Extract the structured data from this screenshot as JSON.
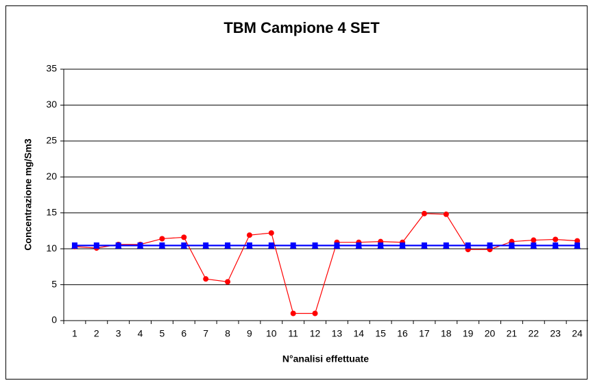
{
  "chart_data": {
    "type": "line",
    "title": "TBM Campione 4 SET",
    "x_label": "N°analisi effettuate",
    "y_label": "Concentrazione mg/Sm3",
    "categories": [
      "1",
      "2",
      "3",
      "4",
      "5",
      "6",
      "7",
      "8",
      "9",
      "10",
      "11",
      "12",
      "13",
      "14",
      "15",
      "16",
      "17",
      "18",
      "19",
      "20",
      "21",
      "22",
      "23",
      "24"
    ],
    "series": [
      {
        "color": "#ff0000",
        "marker": "circle",
        "values": [
          10.3,
          10.1,
          10.6,
          10.6,
          11.4,
          11.6,
          5.8,
          5.4,
          11.9,
          12.2,
          1.0,
          1.0,
          10.9,
          10.9,
          11.0,
          10.9,
          14.9,
          14.8,
          9.9,
          9.9,
          11.0,
          11.2,
          11.3,
          11.1
        ]
      },
      {
        "color": "#0000ff",
        "marker": "square",
        "values": [
          10.5,
          10.5,
          10.5,
          10.5,
          10.5,
          10.5,
          10.5,
          10.5,
          10.5,
          10.5,
          10.5,
          10.5,
          10.5,
          10.5,
          10.5,
          10.5,
          10.5,
          10.5,
          10.5,
          10.5,
          10.5,
          10.5,
          10.5,
          10.5
        ]
      },
      {
        "color": "#0000ff",
        "marker": "triangle",
        "values": [
          10.4,
          10.4,
          10.4,
          10.4,
          10.4,
          10.4,
          10.4,
          10.4,
          10.4,
          10.4,
          10.4,
          10.4,
          10.4,
          10.4,
          10.4,
          10.4,
          10.4,
          10.4,
          10.4,
          10.4,
          10.4,
          10.4,
          10.4,
          10.4
        ]
      }
    ],
    "ylim": [
      0,
      35
    ],
    "yticks": [
      0,
      5,
      10,
      15,
      20,
      25,
      30,
      35
    ],
    "grid": true
  }
}
